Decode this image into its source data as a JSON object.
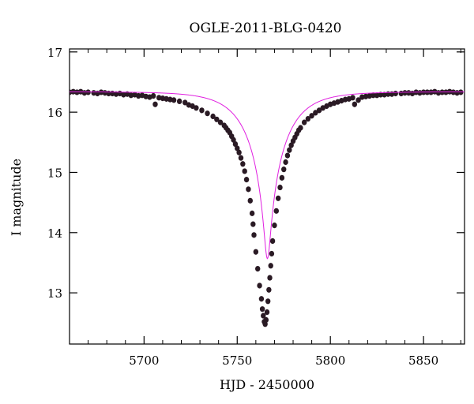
{
  "chart_data": {
    "type": "scatter",
    "title": "OGLE-2011-BLG-0420",
    "xlabel": "HJD - 2450000",
    "ylabel": "I magnitude",
    "xlim": [
      5660,
      5872
    ],
    "ylim": [
      17.05,
      12.15
    ],
    "y_inverted": true,
    "x_ticks": [
      5700,
      5750,
      5800,
      5850
    ],
    "y_ticks": [
      13,
      14,
      15,
      16,
      17
    ],
    "x_tick_labels": [
      "5700",
      "5750",
      "5800",
      "5850"
    ],
    "y_tick_labels": [
      "13",
      "14",
      "15",
      "16",
      "17"
    ],
    "grid": false,
    "legend": "none",
    "model_curve": {
      "kind": "microlensing-fit",
      "color": "#e020e0",
      "t0": 5766.2,
      "u0": 0.078,
      "tE": 20.0,
      "baseline_mag": 16.34
    },
    "series": [
      {
        "marker_color": "#2a1a24",
        "x": [
          5660,
          5662,
          5664,
          5666,
          5668,
          5670,
          5673,
          5675,
          5677,
          5679,
          5681,
          5683,
          5685,
          5687,
          5689,
          5691,
          5693,
          5695,
          5697,
          5699,
          5701,
          5703,
          5705,
          5706,
          5708,
          5710,
          5712,
          5714,
          5716,
          5719,
          5722,
          5724,
          5726,
          5728,
          5731,
          5734,
          5737,
          5739,
          5741,
          5743,
          5744,
          5745,
          5746,
          5747,
          5748,
          5749,
          5750,
          5751,
          5752,
          5753,
          5754,
          5755,
          5756,
          5757,
          5758,
          5758.5,
          5759,
          5760,
          5761,
          5762,
          5763,
          5763.5,
          5764,
          5764.5,
          5765,
          5765.5,
          5766,
          5766.5,
          5767,
          5767.5,
          5768,
          5768.5,
          5769,
          5770,
          5771,
          5772,
          5773,
          5774,
          5775,
          5776,
          5777,
          5778,
          5779,
          5780,
          5781,
          5782,
          5783,
          5784,
          5786,
          5788,
          5790,
          5792,
          5794,
          5796,
          5798,
          5800,
          5802,
          5804,
          5806,
          5808,
          5810,
          5812,
          5813,
          5815,
          5817,
          5819,
          5821,
          5823,
          5825,
          5827,
          5829,
          5831,
          5833,
          5835,
          5838,
          5840,
          5842,
          5844,
          5846,
          5848,
          5850,
          5852,
          5854,
          5856,
          5858,
          5860,
          5862,
          5864,
          5866,
          5868,
          5870
        ],
        "y": [
          16.33,
          16.34,
          16.33,
          16.34,
          16.32,
          16.33,
          16.32,
          16.31,
          16.33,
          16.32,
          16.31,
          16.31,
          16.3,
          16.31,
          16.29,
          16.3,
          16.28,
          16.29,
          16.27,
          16.28,
          16.26,
          16.25,
          16.27,
          16.13,
          16.24,
          16.23,
          16.22,
          16.21,
          16.2,
          16.18,
          16.16,
          16.12,
          16.1,
          16.07,
          16.03,
          15.98,
          15.93,
          15.88,
          15.83,
          15.78,
          15.74,
          15.7,
          15.66,
          15.6,
          15.54,
          15.47,
          15.4,
          15.33,
          15.24,
          15.14,
          15.02,
          14.88,
          14.72,
          14.53,
          14.32,
          14.14,
          13.96,
          13.68,
          13.4,
          13.12,
          12.9,
          12.73,
          12.62,
          12.52,
          12.48,
          12.55,
          12.68,
          12.86,
          13.05,
          13.25,
          13.45,
          13.65,
          13.86,
          14.12,
          14.36,
          14.57,
          14.75,
          14.91,
          15.05,
          15.17,
          15.28,
          15.37,
          15.45,
          15.52,
          15.58,
          15.64,
          15.7,
          15.74,
          15.83,
          15.89,
          15.94,
          15.99,
          16.03,
          16.07,
          16.1,
          16.13,
          16.15,
          16.17,
          16.19,
          16.21,
          16.22,
          16.24,
          16.13,
          16.2,
          16.25,
          16.26,
          16.27,
          16.28,
          16.28,
          16.29,
          16.29,
          16.3,
          16.3,
          16.31,
          16.31,
          16.32,
          16.32,
          16.31,
          16.33,
          16.32,
          16.33,
          16.33,
          16.33,
          16.34,
          16.32,
          16.33,
          16.33,
          16.34,
          16.33,
          16.32,
          16.33
        ]
      }
    ]
  }
}
